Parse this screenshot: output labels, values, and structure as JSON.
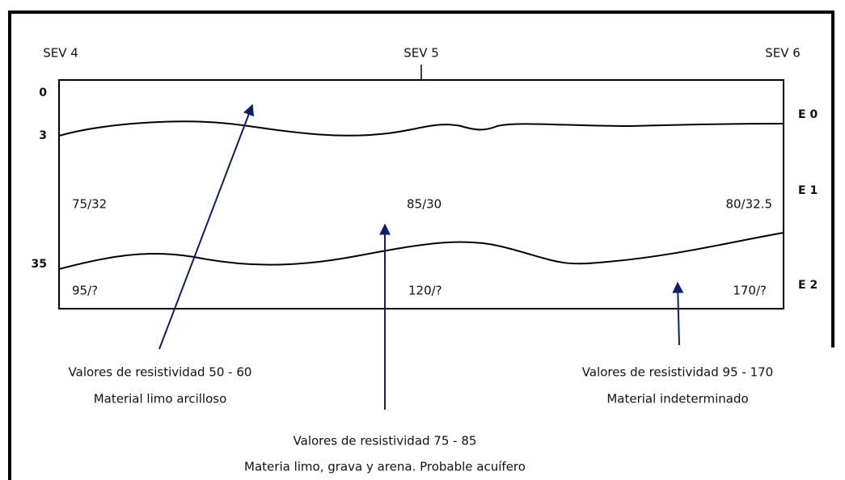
{
  "sections": [
    {
      "label": "SEV 4"
    },
    {
      "label": "SEV 5"
    },
    {
      "label": "SEV 6"
    }
  ],
  "depths": [
    "0",
    "3",
    "35"
  ],
  "layers": [
    "E 0",
    "E 1",
    "E 2"
  ],
  "values": {
    "e1": [
      "75/32",
      "85/30",
      "80/32.5"
    ],
    "e2": [
      "95/?",
      "120/?",
      "170/?"
    ]
  },
  "annotations": [
    {
      "lines": [
        "Valores de resistividad 50 - 60",
        "Material limo arcilloso"
      ]
    },
    {
      "lines": [
        "Valores de resistividad 75 - 85",
        "Materia limo, grava y arena. Probable acuífero"
      ]
    },
    {
      "lines": [
        "Valores de resistividad 95 - 170",
        "Material indeterminado"
      ]
    }
  ]
}
